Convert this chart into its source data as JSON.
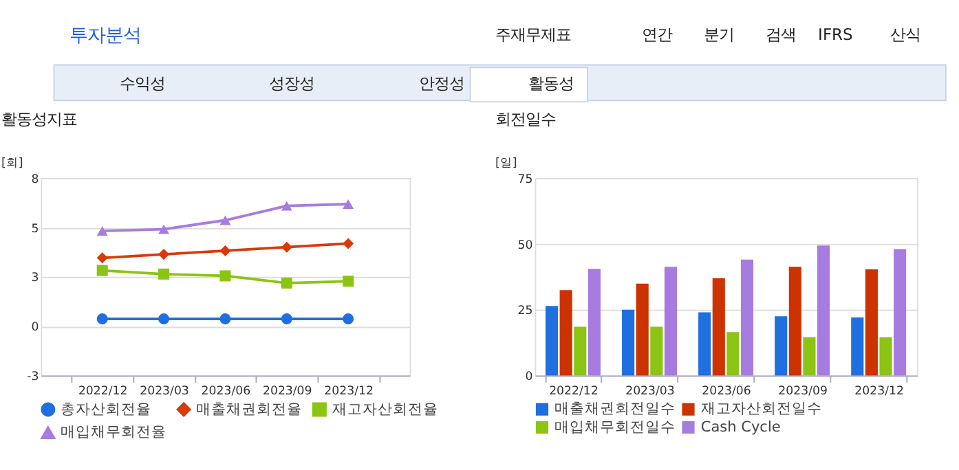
{
  "chart_data": [
    {
      "type": "line",
      "title": "활동성지표",
      "ylabel": "[회]",
      "annotations": [
        "투자분석",
        "주재무제표",
        "연간",
        "분기",
        "검색",
        "IFRS",
        "산식",
        "수익성",
        "성장성",
        "안정성",
        "활동성"
      ],
      "categories": [
        "2022/12",
        "2023/03",
        "2023/06",
        "2023/09",
        "2023/12"
      ],
      "series": [
        {
          "name": "총자산회전율",
          "color": "#1f6fe0",
          "marker": "circle",
          "values": [
            0.4,
            0.4,
            0.4,
            0.4,
            0.4
          ]
        },
        {
          "name": "매출채권회전율",
          "color": "#d83a0a",
          "marker": "diamond",
          "values": [
            3.8,
            4.0,
            4.2,
            4.4,
            4.6
          ]
        },
        {
          "name": "재고자산회전율",
          "color": "#8cc414",
          "marker": "square",
          "values": [
            3.1,
            2.9,
            2.8,
            2.4,
            2.5
          ]
        },
        {
          "name": "매입채무회전율",
          "color": "#a77ce0",
          "marker": "triangle",
          "values": [
            5.3,
            5.4,
            5.9,
            6.7,
            6.8
          ]
        }
      ],
      "ylim": [
        -2.75,
        8.25
      ],
      "yticks": [
        {
          "value": -2.75,
          "label": "-3"
        },
        {
          "value": 0,
          "label": "0"
        },
        {
          "value": 2.75,
          "label": "3"
        },
        {
          "value": 5.5,
          "label": "5"
        },
        {
          "value": 8.25,
          "label": "8"
        }
      ],
      "grid": "y",
      "legend": "bottom",
      "line_style": "solid"
    },
    {
      "type": "bar",
      "title": "회전일수",
      "ylabel": "[일]",
      "categories": [
        "2022/12",
        "2023/03",
        "2023/06",
        "2023/09",
        "2023/12"
      ],
      "series": [
        {
          "name": "매출채권회전일수",
          "color": "#1f6fe0",
          "values": [
            26.4,
            25,
            24,
            22.5,
            22
          ]
        },
        {
          "name": "재고자산회전일수",
          "color": "#cc3300",
          "values": [
            32.4,
            34.9,
            36.9,
            41.3,
            40.3
          ]
        },
        {
          "name": "매입채무회전일수",
          "color": "#8cc414",
          "values": [
            18.5,
            18.5,
            16.5,
            14.5,
            14.5
          ]
        },
        {
          "name": "Cash Cycle",
          "color": "#a77ce0",
          "values": [
            40.5,
            41.3,
            44,
            49.4,
            48
          ]
        }
      ],
      "ylim": [
        0,
        75
      ],
      "yticks": [
        0,
        25,
        50,
        75
      ],
      "grid": "y",
      "legend": "bottom"
    }
  ]
}
